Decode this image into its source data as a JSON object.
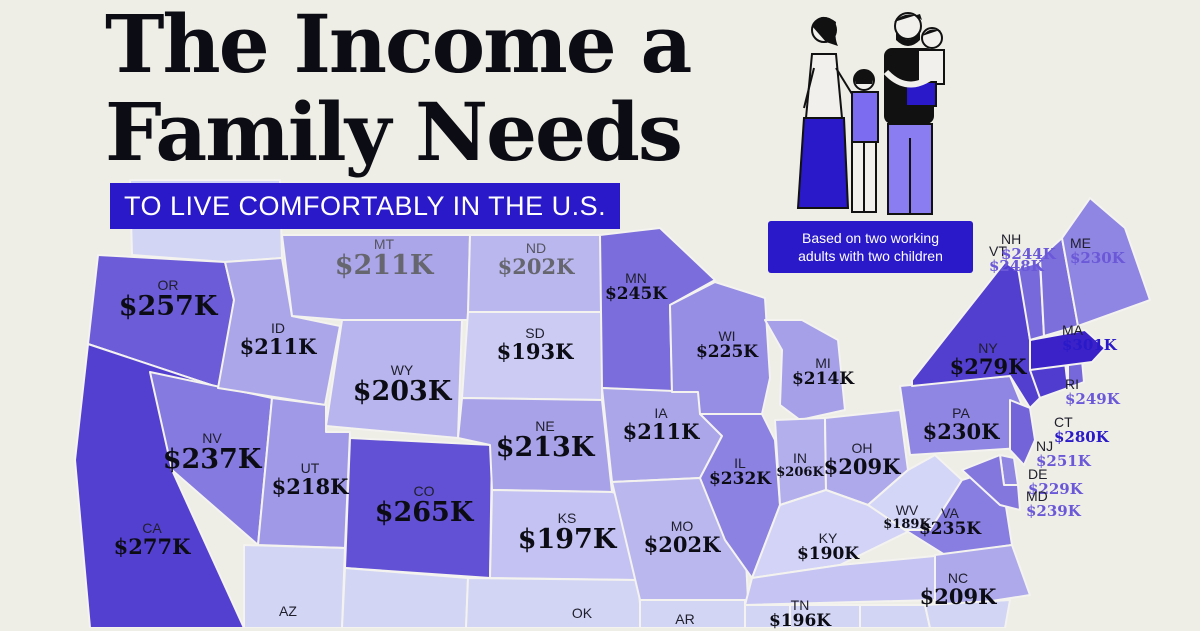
{
  "title_line1": "The Income a",
  "title_line2": "Family Needs",
  "subtitle": "TO LIVE COMFORTABLY IN THE U.S.",
  "note_line1": "Based on two working",
  "note_line2": "adults with two children",
  "colors": {
    "background": "#eeede6",
    "accent": "#2a19c9",
    "ramp_low": "#e2e6fb",
    "ramp_high": "#3a22c8"
  },
  "icon": "family-illustration",
  "states": [
    {
      "code": "WA",
      "abbr": "",
      "value": "",
      "income": 0
    },
    {
      "code": "OR",
      "abbr": "OR",
      "value": "$257K",
      "income": 257
    },
    {
      "code": "CA",
      "abbr": "CA",
      "value": "$277K",
      "income": 277
    },
    {
      "code": "NV",
      "abbr": "NV",
      "value": "$237K",
      "income": 237
    },
    {
      "code": "ID",
      "abbr": "ID",
      "value": "$211K",
      "income": 211
    },
    {
      "code": "MT",
      "abbr": "MT",
      "value": "$211K",
      "income": 211
    },
    {
      "code": "WY",
      "abbr": "WY",
      "value": "$203K",
      "income": 203
    },
    {
      "code": "UT",
      "abbr": "UT",
      "value": "$218K",
      "income": 218
    },
    {
      "code": "AZ",
      "abbr": "AZ",
      "value": "",
      "income": 0
    },
    {
      "code": "CO",
      "abbr": "CO",
      "value": "$265K",
      "income": 265
    },
    {
      "code": "NM",
      "abbr": "",
      "value": "",
      "income": 0
    },
    {
      "code": "ND",
      "abbr": "ND",
      "value": "$202K",
      "income": 202
    },
    {
      "code": "SD",
      "abbr": "SD",
      "value": "$193K",
      "income": 193
    },
    {
      "code": "NE",
      "abbr": "NE",
      "value": "$213K",
      "income": 213
    },
    {
      "code": "KS",
      "abbr": "KS",
      "value": "$197K",
      "income": 197
    },
    {
      "code": "OK",
      "abbr": "OK",
      "value": "",
      "income": 0
    },
    {
      "code": "TX",
      "abbr": "",
      "value": "",
      "income": 0
    },
    {
      "code": "MN",
      "abbr": "MN",
      "value": "$245K",
      "income": 245
    },
    {
      "code": "IA",
      "abbr": "IA",
      "value": "$211K",
      "income": 211
    },
    {
      "code": "MO",
      "abbr": "MO",
      "value": "$202K",
      "income": 202
    },
    {
      "code": "AR",
      "abbr": "AR",
      "value": "",
      "income": 0
    },
    {
      "code": "WI",
      "abbr": "WI",
      "value": "$225K",
      "income": 225
    },
    {
      "code": "IL",
      "abbr": "IL",
      "value": "$232K",
      "income": 232
    },
    {
      "code": "MI",
      "abbr": "MI",
      "value": "$214K",
      "income": 214
    },
    {
      "code": "IN",
      "abbr": "IN",
      "value": "$206K",
      "income": 206
    },
    {
      "code": "OH",
      "abbr": "OH",
      "value": "$209K",
      "income": 209
    },
    {
      "code": "KY",
      "abbr": "KY",
      "value": "$190K",
      "income": 190
    },
    {
      "code": "TN",
      "abbr": "TN",
      "value": "$196K",
      "income": 196
    },
    {
      "code": "MS",
      "abbr": "",
      "value": "",
      "income": 0
    },
    {
      "code": "AL",
      "abbr": "",
      "value": "",
      "income": 0
    },
    {
      "code": "GA",
      "abbr": "",
      "value": "",
      "income": 0
    },
    {
      "code": "WV",
      "abbr": "WV",
      "value": "$189K",
      "income": 189
    },
    {
      "code": "VA",
      "abbr": "VA",
      "value": "$235K",
      "income": 235
    },
    {
      "code": "NC",
      "abbr": "NC",
      "value": "$209K",
      "income": 209
    },
    {
      "code": "SC",
      "abbr": "",
      "value": "",
      "income": 0
    },
    {
      "code": "PA",
      "abbr": "PA",
      "value": "$230K",
      "income": 230
    },
    {
      "code": "NY",
      "abbr": "NY",
      "value": "$279K",
      "income": 279
    },
    {
      "code": "NJ",
      "abbr": "NJ",
      "value": "$251K",
      "income": 251
    },
    {
      "code": "DE",
      "abbr": "DE",
      "value": "$229K",
      "income": 229
    },
    {
      "code": "MD",
      "abbr": "MD",
      "value": "$239K",
      "income": 239
    },
    {
      "code": "CT",
      "abbr": "CT",
      "value": "$280K",
      "income": 280
    },
    {
      "code": "RI",
      "abbr": "RI",
      "value": "$249K",
      "income": 249
    },
    {
      "code": "MA",
      "abbr": "MA",
      "value": "$301K",
      "income": 301
    },
    {
      "code": "VT",
      "abbr": "VT",
      "value": "$248K",
      "income": 248
    },
    {
      "code": "NH",
      "abbr": "NH",
      "value": "$244K",
      "income": 244
    },
    {
      "code": "ME",
      "abbr": "ME",
      "value": "$230K",
      "income": 230
    }
  ]
}
